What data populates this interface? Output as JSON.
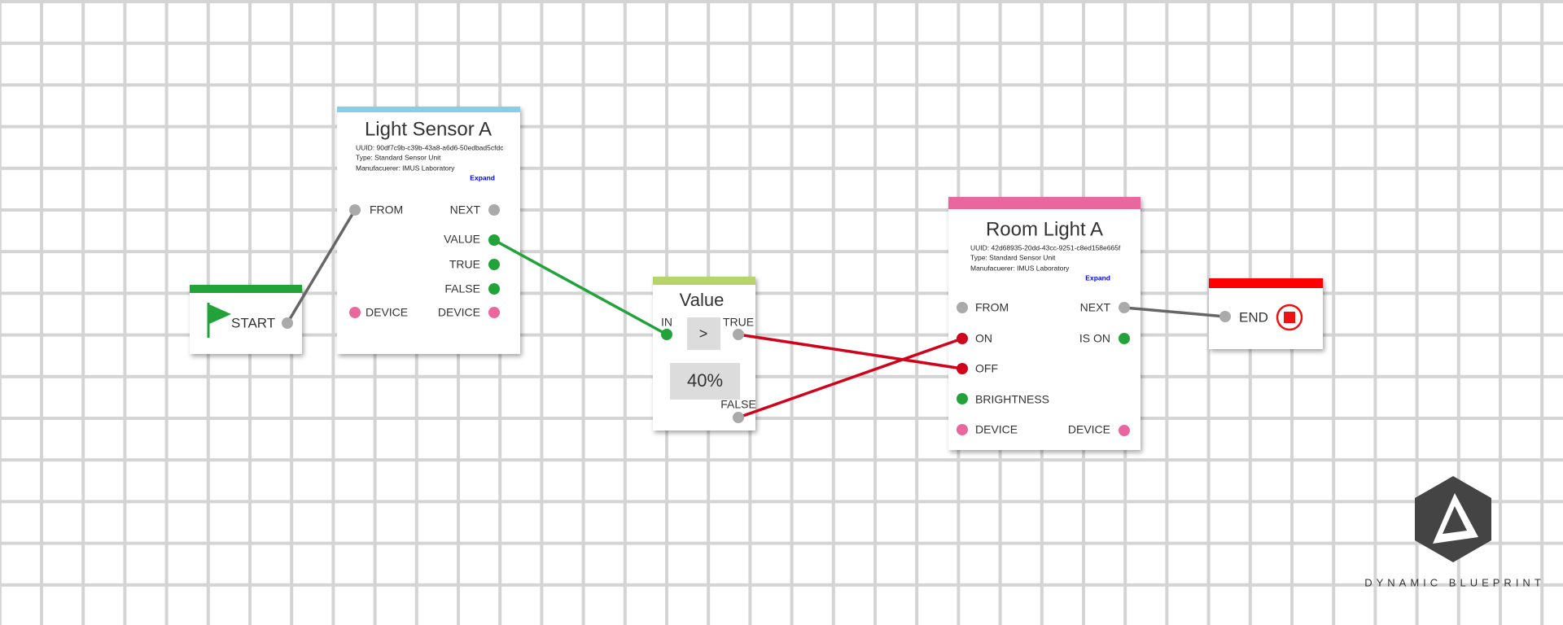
{
  "nodes": [
    {
      "title": "START"
    },
    {
      "title": "Light Sensor A",
      "uuid": "UUID: 90df7c9b-c39b-43a8-a6d6-50edbad5cfdc",
      "type": "Type: Standard Sensor Unit",
      "manufacturer": "Manufacuerer: IMUS Laboratory",
      "expand": "Expand",
      "ports": [
        "FROM",
        "NEXT",
        "VALUE",
        "TRUE",
        "FALSE",
        "DEVICE",
        "DEVICE"
      ]
    },
    {
      "title": "Value",
      "operator": ">",
      "threshold": "40%",
      "ports": [
        "IN",
        "TRUE",
        "FALSE"
      ]
    },
    {
      "title": "Room Light A",
      "uuid": "UUID: 42d68935-20dd-43cc-9251-c8ed158e665f",
      "type": "Type: Standard Sensor Unit",
      "manufacturer": "Manufacuerer: IMUS Laboratory",
      "expand": "Expand",
      "ports": [
        "FROM",
        "NEXT",
        "ON",
        "IS ON",
        "OFF",
        "BRIGHTNESS",
        "DEVICE",
        "DEVICE"
      ]
    },
    {
      "title": "END"
    }
  ],
  "logo": "DYNAMIC BLUEPRINT"
}
